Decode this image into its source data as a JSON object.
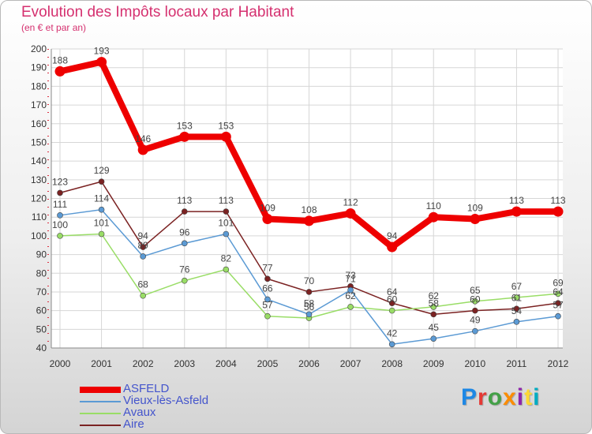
{
  "header": {
    "title": "Evolution des Impôts locaux par Habitant",
    "subtitle": "(en € et par an)"
  },
  "logo": {
    "text": "Proxiti",
    "letter_colors": [
      "#1e88e5",
      "#e53935",
      "#43a047",
      "#fb8c00",
      "#8e24aa",
      "#fdd835",
      "#00acc1"
    ]
  },
  "chart_data": {
    "type": "line",
    "title": "Evolution des Impôts locaux par Habitant",
    "subtitle": "(en € et par an)",
    "xlabel": "",
    "ylabel": "",
    "ylim": [
      40,
      200
    ],
    "yticks": [
      40,
      50,
      60,
      70,
      80,
      90,
      100,
      110,
      120,
      130,
      140,
      150,
      160,
      170,
      180,
      190,
      200
    ],
    "grid": true,
    "legend_position": "bottom-left",
    "x": [
      "2000",
      "2001",
      "2002",
      "2003",
      "2004",
      "2005",
      "2006",
      "2007",
      "2008",
      "2009",
      "2010",
      "2011",
      "2012"
    ],
    "series": [
      {
        "name": "ASFELD",
        "color": "#ee0000",
        "values": [
          188,
          193,
          146,
          153,
          153,
          109,
          108,
          112,
          94,
          110,
          109,
          113,
          113
        ]
      },
      {
        "name": "Vieux-lès-Asfeld",
        "color": "#5b9ad4",
        "values": [
          111,
          114,
          89,
          96,
          101,
          66,
          58,
          71,
          42,
          45,
          49,
          54,
          57
        ]
      },
      {
        "name": "Avaux",
        "color": "#99dd66",
        "values": [
          100,
          101,
          68,
          76,
          82,
          57,
          56,
          62,
          60,
          62,
          65,
          67,
          69
        ]
      },
      {
        "name": "Aire",
        "color": "#7b2222",
        "values": [
          123,
          129,
          94,
          113,
          113,
          77,
          70,
          73,
          64,
          58,
          60,
          61,
          64
        ]
      }
    ]
  }
}
